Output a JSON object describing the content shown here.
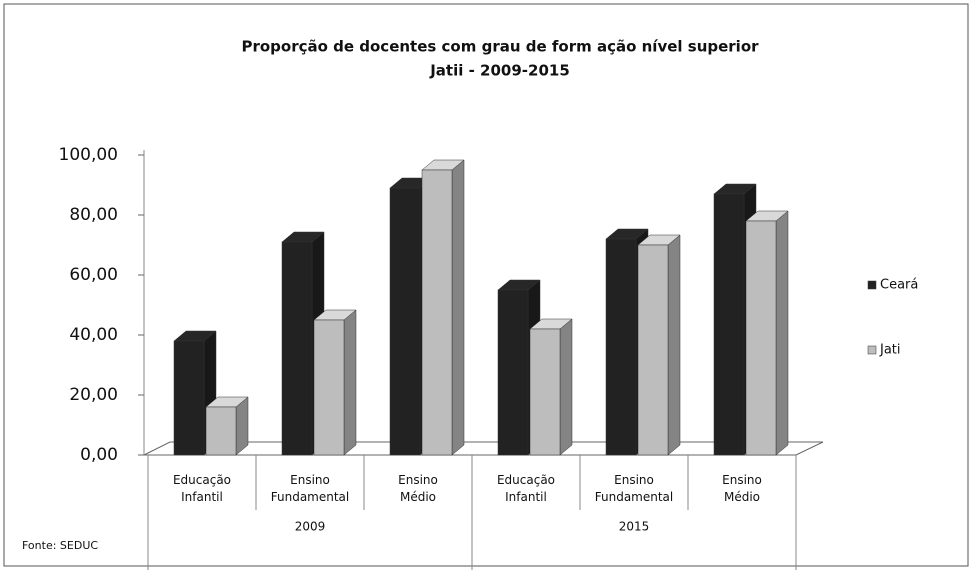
{
  "chart_data": {
    "type": "bar3d",
    "title": "Proporção de docentes com grau de form ação nível superior",
    "subtitle": "Jatii  - 2009-2015",
    "source": "Fonte: SEDUC",
    "categories": [
      "Educação Infantil",
      "Ensino Fundamental",
      "Ensino Médio",
      "Educação Infantil",
      "Ensino Fundamental",
      "Ensino Médio"
    ],
    "category_groups": [
      "2009",
      "2015"
    ],
    "series": [
      {
        "name": "Ceará",
        "color": "#222222",
        "values": [
          38,
          71,
          89,
          55,
          72,
          87
        ]
      },
      {
        "name": "Jati",
        "color": "#bdbdbd",
        "values": [
          16,
          45,
          95,
          42,
          70,
          78
        ]
      }
    ],
    "ylim": [
      0,
      100
    ],
    "yticks": [
      {
        "value": 0,
        "label": "0,00"
      },
      {
        "value": 20,
        "label": "20,00"
      },
      {
        "value": 40,
        "label": "40,00"
      },
      {
        "value": 60,
        "label": "60,00"
      },
      {
        "value": 80,
        "label": "80,00"
      },
      {
        "value": 100,
        "label": "100,00"
      }
    ],
    "legend": "right"
  }
}
